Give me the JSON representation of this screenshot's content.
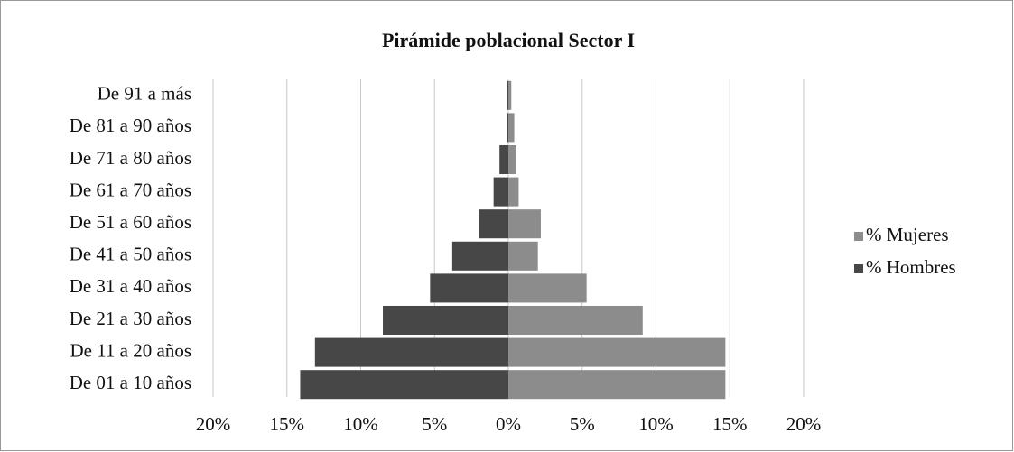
{
  "chart_data": {
    "type": "pyramid",
    "title": "Pirámide poblacional Sector I",
    "categories": [
      "De 01 a 10 años",
      "De 11 a 20 años",
      "De 21 a 30 años",
      "De 31 a 40 años",
      "De 41 a 50 años",
      "De 51 a 60 años",
      "De 61 a 70 años",
      "De 71 a 80 años",
      "De 81 a 90 años",
      "De 91 a más"
    ],
    "series": [
      {
        "name": "% Mujeres",
        "color": "#8c8c8c",
        "values": [
          14.7,
          14.7,
          9.1,
          5.3,
          2.0,
          2.2,
          0.7,
          0.55,
          0.4,
          0.2
        ]
      },
      {
        "name": "% Hombres",
        "color": "#474747",
        "values": [
          -14.1,
          -13.1,
          -8.5,
          -5.3,
          -3.8,
          -2.0,
          -1.0,
          -0.6,
          -0.1,
          -0.1
        ]
      }
    ],
    "xlim": [
      -20,
      20
    ],
    "xticks": [
      {
        "value": -20,
        "label": "20%"
      },
      {
        "value": -15,
        "label": "15%"
      },
      {
        "value": -10,
        "label": "10%"
      },
      {
        "value": -5,
        "label": "5%"
      },
      {
        "value": 0,
        "label": "0%"
      },
      {
        "value": 5,
        "label": "5%"
      },
      {
        "value": 10,
        "label": "10%"
      },
      {
        "value": 15,
        "label": "15%"
      },
      {
        "value": 20,
        "label": "20%"
      }
    ],
    "grid": true,
    "legend": "right"
  }
}
